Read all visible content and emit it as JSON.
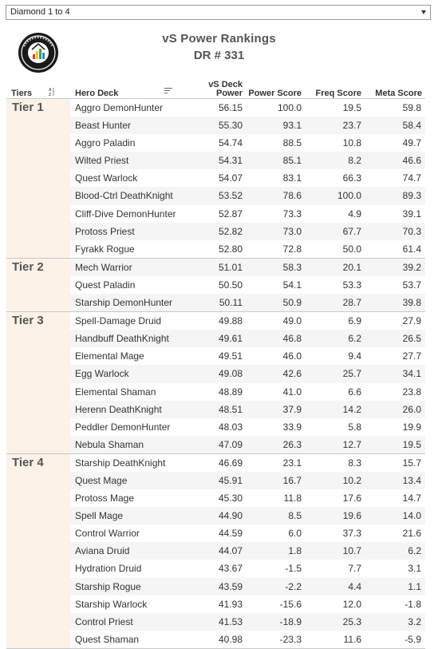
{
  "filter": {
    "selected": "Diamond 1 to 4"
  },
  "header": {
    "title": "vS Power Rankings",
    "subtitle": "DR # 331",
    "logo_icon": "vs-data-reaper-logo-icon"
  },
  "columns": {
    "tiers": "Tiers",
    "hero_deck": "Hero Deck",
    "vs_deck_power_line1": "vS Deck",
    "vs_deck_power_line2": "Power",
    "power_score": "Power Score",
    "freq_score": "Freq Score",
    "meta_score": "Meta Score"
  },
  "colors": {
    "tier_bg": "#fcf2e8",
    "alt_row": "#f5f5f5"
  },
  "tiers": [
    {
      "label": "Tier 1",
      "rows": [
        {
          "deck": "Aggro DemonHunter",
          "vs": "56.15",
          "power": "100.0",
          "freq": "19.5",
          "meta": "59.8"
        },
        {
          "deck": "Beast Hunter",
          "vs": "55.30",
          "power": "93.1",
          "freq": "23.7",
          "meta": "58.4"
        },
        {
          "deck": "Aggro Paladin",
          "vs": "54.74",
          "power": "88.5",
          "freq": "10.8",
          "meta": "49.7"
        },
        {
          "deck": "Wilted Priest",
          "vs": "54.31",
          "power": "85.1",
          "freq": "8.2",
          "meta": "46.6"
        },
        {
          "deck": "Quest Warlock",
          "vs": "54.07",
          "power": "83.1",
          "freq": "66.3",
          "meta": "74.7"
        },
        {
          "deck": "Blood-Ctrl DeathKnight",
          "vs": "53.52",
          "power": "78.6",
          "freq": "100.0",
          "meta": "89.3"
        },
        {
          "deck": "Cliff-Dive DemonHunter",
          "vs": "52.87",
          "power": "73.3",
          "freq": "4.9",
          "meta": "39.1"
        },
        {
          "deck": "Protoss Priest",
          "vs": "52.82",
          "power": "73.0",
          "freq": "67.7",
          "meta": "70.3"
        },
        {
          "deck": "Fyrakk Rogue",
          "vs": "52.80",
          "power": "72.8",
          "freq": "50.0",
          "meta": "61.4"
        }
      ]
    },
    {
      "label": "Tier 2",
      "rows": [
        {
          "deck": "Mech Warrior",
          "vs": "51.01",
          "power": "58.3",
          "freq": "20.1",
          "meta": "39.2"
        },
        {
          "deck": "Quest Paladin",
          "vs": "50.50",
          "power": "54.1",
          "freq": "53.3",
          "meta": "53.7"
        },
        {
          "deck": "Starship DemonHunter",
          "vs": "50.11",
          "power": "50.9",
          "freq": "28.7",
          "meta": "39.8"
        }
      ]
    },
    {
      "label": "Tier 3",
      "rows": [
        {
          "deck": "Spell-Damage Druid",
          "vs": "49.88",
          "power": "49.0",
          "freq": "6.9",
          "meta": "27.9"
        },
        {
          "deck": "Handbuff DeathKnight",
          "vs": "49.61",
          "power": "46.8",
          "freq": "6.2",
          "meta": "26.5"
        },
        {
          "deck": "Elemental Mage",
          "vs": "49.51",
          "power": "46.0",
          "freq": "9.4",
          "meta": "27.7"
        },
        {
          "deck": "Egg Warlock",
          "vs": "49.08",
          "power": "42.6",
          "freq": "25.7",
          "meta": "34.1"
        },
        {
          "deck": "Elemental Shaman",
          "vs": "48.89",
          "power": "41.0",
          "freq": "6.6",
          "meta": "23.8"
        },
        {
          "deck": "Herenn DeathKnight",
          "vs": "48.51",
          "power": "37.9",
          "freq": "14.2",
          "meta": "26.0"
        },
        {
          "deck": "Peddler DemonHunter",
          "vs": "48.03",
          "power": "33.9",
          "freq": "5.8",
          "meta": "19.9"
        },
        {
          "deck": "Nebula Shaman",
          "vs": "47.09",
          "power": "26.3",
          "freq": "12.7",
          "meta": "19.5"
        }
      ]
    },
    {
      "label": "Tier 4",
      "rows": [
        {
          "deck": "Starship DeathKnight",
          "vs": "46.69",
          "power": "23.1",
          "freq": "8.3",
          "meta": "15.7"
        },
        {
          "deck": "Quest Mage",
          "vs": "45.91",
          "power": "16.7",
          "freq": "10.2",
          "meta": "13.4"
        },
        {
          "deck": "Protoss Mage",
          "vs": "45.30",
          "power": "11.8",
          "freq": "17.6",
          "meta": "14.7"
        },
        {
          "deck": "Spell Mage",
          "vs": "44.90",
          "power": "8.5",
          "freq": "19.6",
          "meta": "14.0"
        },
        {
          "deck": "Control Warrior",
          "vs": "44.59",
          "power": "6.0",
          "freq": "37.3",
          "meta": "21.6"
        },
        {
          "deck": "Aviana Druid",
          "vs": "44.07",
          "power": "1.8",
          "freq": "10.7",
          "meta": "6.2"
        },
        {
          "deck": "Hydration Druid",
          "vs": "43.67",
          "power": "-1.5",
          "freq": "7.7",
          "meta": "3.1"
        },
        {
          "deck": "Starship Rogue",
          "vs": "43.59",
          "power": "-2.2",
          "freq": "4.4",
          "meta": "1.1"
        },
        {
          "deck": "Starship Warlock",
          "vs": "41.93",
          "power": "-15.6",
          "freq": "12.0",
          "meta": "-1.8"
        },
        {
          "deck": "Control Priest",
          "vs": "41.53",
          "power": "-18.9",
          "freq": "25.3",
          "meta": "3.2"
        },
        {
          "deck": "Quest Shaman",
          "vs": "40.98",
          "power": "-23.3",
          "freq": "11.6",
          "meta": "-5.9"
        }
      ]
    }
  ]
}
